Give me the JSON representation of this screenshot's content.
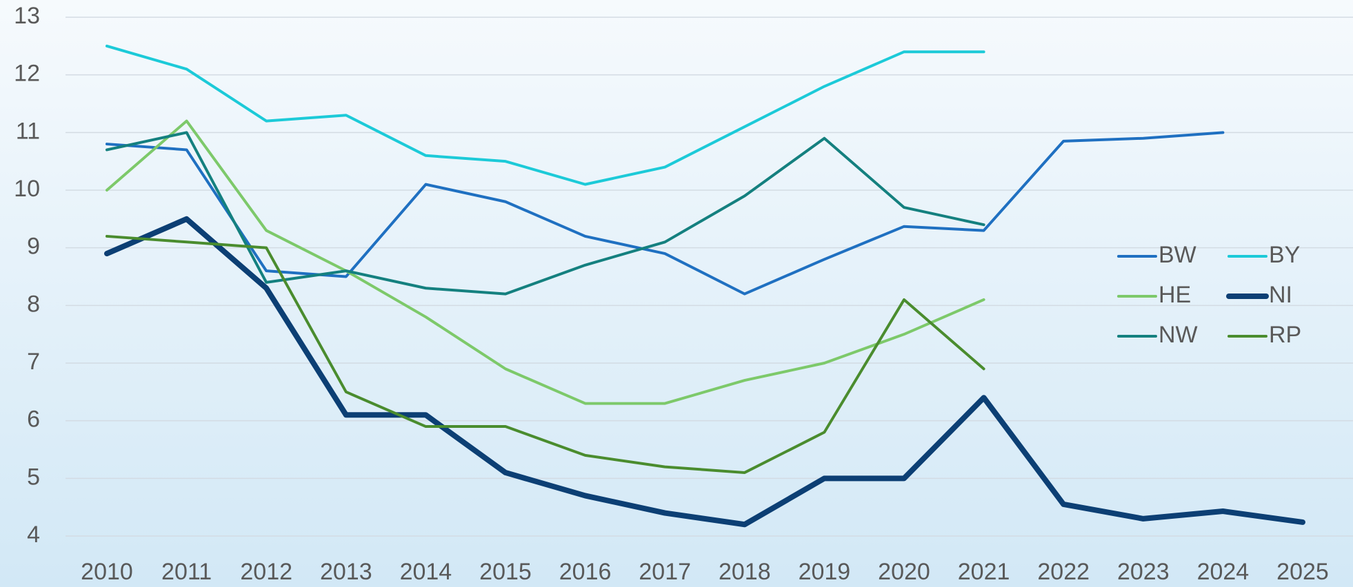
{
  "chart_data": {
    "type": "line",
    "categories": [
      "2010",
      "2011",
      "2012",
      "2013",
      "2014",
      "2015",
      "2016",
      "2017",
      "2018",
      "2019",
      "2020",
      "2021",
      "2022",
      "2023",
      "2024",
      "2025"
    ],
    "ylim": [
      4,
      13
    ],
    "yticks": [
      4,
      5,
      6,
      7,
      8,
      9,
      10,
      11,
      12,
      13
    ],
    "grid": true,
    "legend": "right",
    "series": [
      {
        "name": "BW",
        "color": "#1f70c1",
        "line_width": 4,
        "values": [
          10.8,
          10.7,
          8.6,
          8.5,
          10.1,
          9.8,
          9.2,
          8.9,
          8.2,
          8.8,
          9.37,
          9.3,
          10.85,
          10.9,
          11.0,
          null
        ]
      },
      {
        "name": "BY",
        "color": "#1ccad8",
        "line_width": 4,
        "values": [
          12.5,
          12.1,
          11.2,
          11.3,
          10.6,
          10.5,
          10.1,
          10.4,
          11.1,
          11.8,
          12.4,
          12.4,
          null,
          null,
          null,
          null
        ]
      },
      {
        "name": "HE",
        "color": "#7dc96a",
        "line_width": 4,
        "values": [
          10.0,
          11.2,
          9.3,
          8.6,
          7.8,
          6.9,
          6.3,
          6.3,
          6.7,
          7.0,
          7.5,
          8.1,
          null,
          null,
          null,
          null
        ]
      },
      {
        "name": "NI",
        "color": "#0c3f74",
        "line_width": 8,
        "values": [
          8.9,
          9.5,
          8.3,
          6.1,
          6.1,
          5.1,
          4.7,
          4.4,
          4.2,
          5.0,
          5.0,
          6.4,
          4.55,
          4.3,
          4.43,
          4.24
        ]
      },
      {
        "name": "NW",
        "color": "#14807f",
        "line_width": 4,
        "values": [
          10.7,
          11.0,
          8.4,
          8.6,
          8.3,
          8.2,
          8.7,
          9.1,
          9.9,
          10.9,
          9.7,
          9.4,
          null,
          null,
          null,
          null
        ]
      },
      {
        "name": "RP",
        "color": "#4a8c2e",
        "line_width": 4,
        "values": [
          9.2,
          9.1,
          9.0,
          6.5,
          5.9,
          5.9,
          5.4,
          5.2,
          5.1,
          5.8,
          8.1,
          6.9,
          null,
          null,
          null,
          null
        ]
      }
    ]
  }
}
